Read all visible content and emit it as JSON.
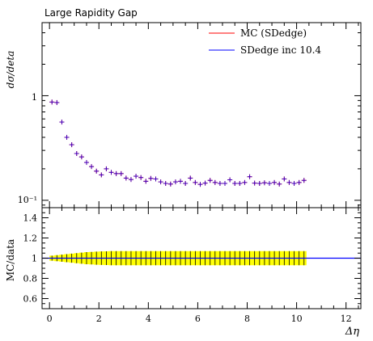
{
  "chart_data": [
    {
      "type": "scatter",
      "title": "Large Rapidity Gap",
      "xlabel": "",
      "ylabel": "dσ/deta",
      "y_scale": "log",
      "xlim": [
        -0.3,
        12.6
      ],
      "ylim": [
        0.085,
        5.0
      ],
      "y_tick_labels": [
        "1",
        "10⁻¹"
      ],
      "legend_position": "top-right",
      "series": [
        {
          "name": "MC (SDedge)",
          "color": "#ff0000",
          "x": [
            0.1,
            0.3,
            0.5,
            0.7,
            0.9,
            1.1,
            1.3,
            1.5,
            1.7,
            1.9,
            2.1,
            2.3,
            2.5,
            2.7,
            2.9,
            3.1,
            3.3,
            3.5,
            3.7,
            3.9,
            4.1,
            4.3,
            4.5,
            4.7,
            4.9,
            5.1,
            5.3,
            5.5,
            5.7,
            5.9,
            6.1,
            6.3,
            6.5,
            6.7,
            6.9,
            7.1,
            7.3,
            7.5,
            7.7,
            7.9,
            8.1,
            8.3,
            8.5,
            8.7,
            8.9,
            9.1,
            9.3,
            9.5,
            9.7,
            9.9,
            10.1,
            10.3
          ],
          "y": [
            0.87,
            0.86,
            0.56,
            0.4,
            0.34,
            0.28,
            0.26,
            0.23,
            0.21,
            0.19,
            0.175,
            0.2,
            0.185,
            0.18,
            0.18,
            0.163,
            0.158,
            0.17,
            0.165,
            0.152,
            0.162,
            0.16,
            0.15,
            0.145,
            0.143,
            0.15,
            0.152,
            0.145,
            0.163,
            0.148,
            0.142,
            0.146,
            0.155,
            0.148,
            0.145,
            0.145,
            0.157,
            0.145,
            0.145,
            0.148,
            0.168,
            0.146,
            0.145,
            0.147,
            0.145,
            0.148,
            0.143,
            0.16,
            0.148,
            0.145,
            0.148,
            0.155
          ]
        },
        {
          "name": "SDedge inc 10.4",
          "color": "#0000ff",
          "x": [
            0.1,
            0.3,
            0.5,
            0.7,
            0.9,
            1.1,
            1.3,
            1.5,
            1.7,
            1.9,
            2.1,
            2.3,
            2.5,
            2.7,
            2.9,
            3.1,
            3.3,
            3.5,
            3.7,
            3.9,
            4.1,
            4.3,
            4.5,
            4.7,
            4.9,
            5.1,
            5.3,
            5.5,
            5.7,
            5.9,
            6.1,
            6.3,
            6.5,
            6.7,
            6.9,
            7.1,
            7.3,
            7.5,
            7.7,
            7.9,
            8.1,
            8.3,
            8.5,
            8.7,
            8.9,
            9.1,
            9.3,
            9.5,
            9.7,
            9.9,
            10.1,
            10.3
          ],
          "y": [
            0.87,
            0.86,
            0.56,
            0.4,
            0.34,
            0.28,
            0.26,
            0.23,
            0.21,
            0.19,
            0.175,
            0.2,
            0.185,
            0.18,
            0.18,
            0.163,
            0.158,
            0.17,
            0.165,
            0.152,
            0.162,
            0.16,
            0.15,
            0.145,
            0.143,
            0.15,
            0.152,
            0.145,
            0.163,
            0.148,
            0.142,
            0.146,
            0.155,
            0.148,
            0.145,
            0.145,
            0.157,
            0.145,
            0.145,
            0.148,
            0.168,
            0.146,
            0.145,
            0.147,
            0.145,
            0.148,
            0.143,
            0.16,
            0.148,
            0.145,
            0.148,
            0.155
          ]
        }
      ]
    },
    {
      "type": "line",
      "title": "",
      "xlabel": "Δη",
      "ylabel": "MC/data",
      "xlim": [
        -0.3,
        12.6
      ],
      "ylim": [
        0.5,
        1.5
      ],
      "x_ticks": [
        0,
        2,
        4,
        6,
        8,
        10,
        12
      ],
      "y_ticks": [
        0.6,
        0.8,
        1,
        1.2,
        1.4
      ],
      "band_color": "#ffff00",
      "ratio_line_color": "#0000ff",
      "band": {
        "x": [
          0.1,
          0.3,
          0.5,
          0.7,
          0.9,
          1.1,
          1.3,
          1.5,
          1.7,
          1.9,
          2.1,
          2.3,
          2.5,
          2.7,
          2.9,
          3.1,
          3.3,
          3.5,
          3.7,
          3.9,
          4.1,
          4.3,
          4.5,
          4.7,
          4.9,
          5.1,
          5.3,
          5.5,
          5.7,
          5.9,
          6.1,
          6.3,
          6.5,
          6.7,
          6.9,
          7.1,
          7.3,
          7.5,
          7.7,
          7.9,
          8.1,
          8.3,
          8.5,
          8.7,
          8.9,
          9.1,
          9.3,
          9.5,
          9.7,
          9.9,
          10.1,
          10.3
        ],
        "half_width": [
          0.025,
          0.03,
          0.035,
          0.04,
          0.045,
          0.05,
          0.055,
          0.06,
          0.062,
          0.065,
          0.067,
          0.068,
          0.07,
          0.07,
          0.07,
          0.07,
          0.07,
          0.07,
          0.07,
          0.07,
          0.07,
          0.07,
          0.07,
          0.07,
          0.07,
          0.07,
          0.07,
          0.07,
          0.07,
          0.07,
          0.07,
          0.07,
          0.07,
          0.07,
          0.07,
          0.07,
          0.07,
          0.07,
          0.07,
          0.07,
          0.07,
          0.07,
          0.07,
          0.07,
          0.07,
          0.07,
          0.07,
          0.07,
          0.07,
          0.07,
          0.07,
          0.07
        ]
      },
      "ratio": {
        "x": [
          -0.3,
          12.6
        ],
        "y": [
          1,
          1
        ]
      }
    }
  ]
}
